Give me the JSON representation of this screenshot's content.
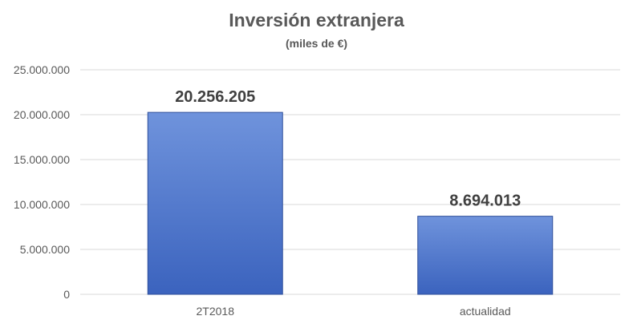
{
  "chart_data": {
    "type": "bar",
    "title": "Inversión extranjera",
    "subtitle": "(miles de €)",
    "categories": [
      "2T2018",
      "actualidad"
    ],
    "values": [
      20256205,
      8694013
    ],
    "value_labels": [
      "20.256.205",
      "8.694.013"
    ],
    "yticks": [
      0,
      5000000,
      10000000,
      15000000,
      20000000,
      25000000
    ],
    "ytick_labels": [
      "0",
      "5.000.000",
      "10.000.000",
      "15.000.000",
      "20.000.000",
      "25.000.000"
    ],
    "ylim": [
      0,
      25000000
    ],
    "grid": true,
    "legend": "none",
    "colors": {
      "bar_top": "#6f93dc",
      "bar_bottom": "#3b63be",
      "bar_edge": "#2f4f9a",
      "grid": "#d9d9d9",
      "axis_text": "#595959",
      "value_label": "#404040"
    }
  }
}
